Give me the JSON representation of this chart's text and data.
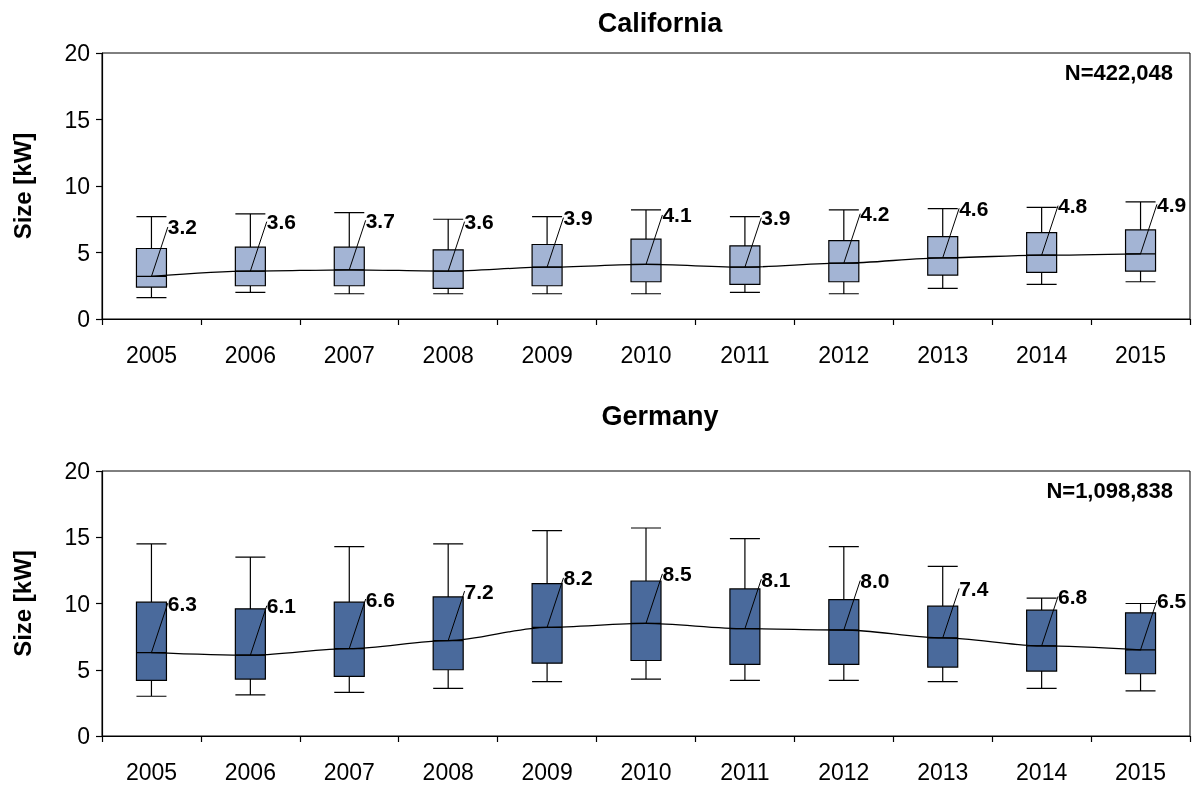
{
  "chart_data": [
    {
      "type": "box",
      "title": "California",
      "ylabel": "Size [kW]",
      "categories": [
        "2005",
        "2006",
        "2007",
        "2008",
        "2009",
        "2010",
        "2011",
        "2012",
        "2013",
        "2014",
        "2015"
      ],
      "ylim": [
        0,
        20
      ],
      "yticks": [
        0,
        5,
        10,
        15,
        20
      ],
      "annotations": [
        "N=422,048"
      ],
      "series": [
        {
          "color": "#a3b4d4",
          "boxes": [
            {
              "low": 1.6,
              "q1": 2.4,
              "median": 3.2,
              "q3": 5.3,
              "high": 7.7
            },
            {
              "low": 2.0,
              "q1": 2.5,
              "median": 3.6,
              "q3": 5.4,
              "high": 7.9
            },
            {
              "low": 1.9,
              "q1": 2.5,
              "median": 3.7,
              "q3": 5.4,
              "high": 8.0
            },
            {
              "low": 1.9,
              "q1": 2.3,
              "median": 3.6,
              "q3": 5.2,
              "high": 7.5
            },
            {
              "low": 1.9,
              "q1": 2.5,
              "median": 3.9,
              "q3": 5.6,
              "high": 7.7
            },
            {
              "low": 1.9,
              "q1": 2.8,
              "median": 4.1,
              "q3": 6.0,
              "high": 8.2
            },
            {
              "low": 2.0,
              "q1": 2.6,
              "median": 3.9,
              "q3": 5.5,
              "high": 7.7
            },
            {
              "low": 1.9,
              "q1": 2.8,
              "median": 4.2,
              "q3": 5.9,
              "high": 8.2
            },
            {
              "low": 2.3,
              "q1": 3.3,
              "median": 4.6,
              "q3": 6.2,
              "high": 8.3
            },
            {
              "low": 2.6,
              "q1": 3.5,
              "median": 4.8,
              "q3": 6.5,
              "high": 8.4
            },
            {
              "low": 2.8,
              "q1": 3.6,
              "median": 4.9,
              "q3": 6.7,
              "high": 8.8
            }
          ]
        },
        {
          "type": "line",
          "color": "#000000",
          "values": [
            3.2,
            3.6,
            3.7,
            3.6,
            3.9,
            4.1,
            3.9,
            4.2,
            4.6,
            4.8,
            4.9
          ],
          "value_labels": [
            "3.2",
            "3.6",
            "3.7",
            "3.6",
            "3.9",
            "4.1",
            "3.9",
            "4.2",
            "4.6",
            "4.8",
            "4.9"
          ]
        }
      ]
    },
    {
      "type": "box",
      "title": "Germany",
      "ylabel": "Size [kW]",
      "categories": [
        "2005",
        "2006",
        "2007",
        "2008",
        "2009",
        "2010",
        "2011",
        "2012",
        "2013",
        "2014",
        "2015"
      ],
      "ylim": [
        0,
        20
      ],
      "yticks": [
        0,
        5,
        10,
        15,
        20
      ],
      "annotations": [
        "N=1,098,838"
      ],
      "series": [
        {
          "color": "#4a6a9c",
          "boxes": [
            {
              "low": 3.0,
              "q1": 4.2,
              "median": 6.3,
              "q3": 10.1,
              "high": 14.5
            },
            {
              "low": 3.1,
              "q1": 4.3,
              "median": 6.1,
              "q3": 9.6,
              "high": 13.5
            },
            {
              "low": 3.3,
              "q1": 4.5,
              "median": 6.6,
              "q3": 10.1,
              "high": 14.3
            },
            {
              "low": 3.6,
              "q1": 5.0,
              "median": 7.2,
              "q3": 10.5,
              "high": 14.5
            },
            {
              "low": 4.1,
              "q1": 5.5,
              "median": 8.2,
              "q3": 11.5,
              "high": 15.5
            },
            {
              "low": 4.3,
              "q1": 5.7,
              "median": 8.5,
              "q3": 11.7,
              "high": 15.7
            },
            {
              "low": 4.2,
              "q1": 5.4,
              "median": 8.1,
              "q3": 11.1,
              "high": 14.9
            },
            {
              "low": 4.2,
              "q1": 5.4,
              "median": 8.0,
              "q3": 10.3,
              "high": 14.3
            },
            {
              "low": 4.1,
              "q1": 5.2,
              "median": 7.4,
              "q3": 9.8,
              "high": 12.8
            },
            {
              "low": 3.6,
              "q1": 4.9,
              "median": 6.8,
              "q3": 9.5,
              "high": 10.4
            },
            {
              "low": 3.4,
              "q1": 4.7,
              "median": 6.5,
              "q3": 9.3,
              "high": 10.0
            }
          ]
        },
        {
          "type": "line",
          "color": "#000000",
          "values": [
            6.3,
            6.1,
            6.6,
            7.2,
            8.2,
            8.5,
            8.1,
            8.0,
            7.4,
            6.8,
            6.5
          ],
          "value_labels": [
            "6.3",
            "6.1",
            "6.6",
            "7.2",
            "8.2",
            "8.5",
            "8.1",
            "8.0",
            "7.4",
            "6.8",
            "6.5"
          ]
        }
      ]
    }
  ]
}
